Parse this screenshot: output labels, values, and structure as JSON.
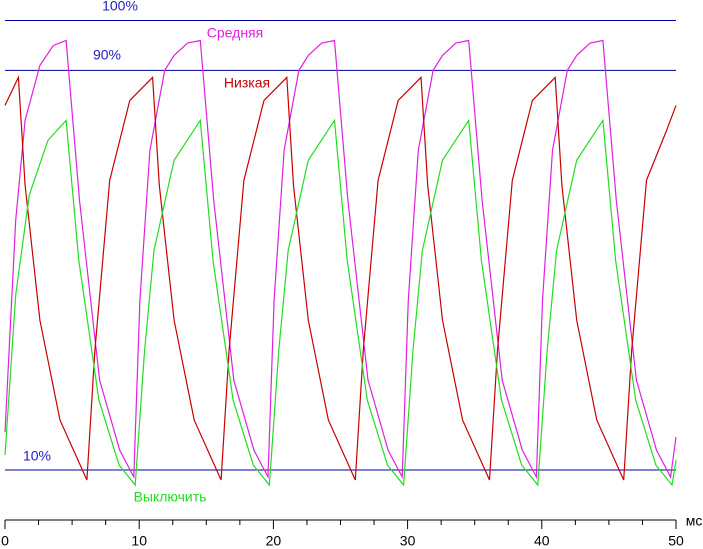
{
  "chart_data": {
    "type": "line",
    "xlabel": "мс",
    "xlim": [
      0,
      50
    ],
    "xticks": [
      0,
      10,
      20,
      30,
      40,
      50
    ],
    "xminor_ticks": [
      2.5,
      5,
      7.5,
      12.5,
      15,
      17.5,
      22.5,
      25,
      27.5,
      32.5,
      35,
      37.5,
      42.5,
      45,
      47.5
    ],
    "ylim": [
      0,
      104
    ],
    "hlines": [
      {
        "value": 100,
        "label": "100%"
      },
      {
        "value": 90,
        "label": "90%"
      },
      {
        "value": 10,
        "label": "10%"
      }
    ],
    "hline_color": "#0000a0",
    "series": [
      {
        "name": "Средняя",
        "color": "#e020e0",
        "x": [
          0,
          0.8,
          1.5,
          2.6,
          3.6,
          4.55,
          5.55,
          7.05,
          8.55,
          9.6,
          10.05,
          10.8,
          11.9,
          12.6,
          13.6,
          14.55,
          15.55,
          17.05,
          18.55,
          19.6,
          20.05,
          20.8,
          21.9,
          22.6,
          23.6,
          24.55,
          25.55,
          27.05,
          28.55,
          29.6,
          30.05,
          30.8,
          31.9,
          32.6,
          33.6,
          34.55,
          35.55,
          37.05,
          38.55,
          39.6,
          40.05,
          40.8,
          41.9,
          42.6,
          43.6,
          44.55,
          45.55,
          47.05,
          48.55,
          49.6,
          50
        ],
        "values": [
          17.6,
          60,
          80,
          91,
          95,
          96,
          64,
          28,
          14,
          8.6,
          44,
          74,
          90,
          93,
          95.5,
          96,
          64,
          28,
          14,
          8.6,
          44,
          74,
          90,
          93,
          95.5,
          96,
          64,
          28,
          14,
          8.6,
          44,
          74,
          90,
          93,
          95.5,
          96,
          64,
          28,
          14,
          8.6,
          44,
          74,
          90,
          93,
          95.5,
          96,
          64,
          28,
          14,
          8.6,
          16.6
        ]
      },
      {
        "name": "Низкая",
        "color": "#c80000",
        "x": [
          0,
          1,
          1.5,
          2.6,
          4.1,
          6.1,
          6.7,
          7.8,
          9.3,
          11,
          11.5,
          12.6,
          14.1,
          16.1,
          16.7,
          17.8,
          19.3,
          21,
          21.5,
          22.6,
          24.1,
          26.1,
          26.7,
          27.8,
          29.3,
          31,
          31.5,
          32.6,
          34.1,
          36.1,
          36.7,
          37.8,
          39.3,
          41,
          41.5,
          42.6,
          44.1,
          46.1,
          46.7,
          47.8,
          49.3,
          50
        ],
        "values": [
          83,
          88.6,
          67,
          40,
          20,
          8,
          34,
          68,
          84,
          88.6,
          67,
          40,
          20,
          8,
          34,
          68,
          84,
          88.6,
          67,
          40,
          20,
          8,
          34,
          68,
          84,
          88.6,
          67,
          40,
          20,
          8,
          34,
          68,
          84,
          88.6,
          67,
          40,
          20,
          8,
          34,
          68,
          78,
          83
        ]
      },
      {
        "name": "Выключить",
        "color": "#22dd22",
        "x": [
          0,
          0.8,
          1.8,
          3.2,
          4.55,
          5.5,
          7,
          8.5,
          9.7,
          10.4,
          11.1,
          12.6,
          14.55,
          15.5,
          17,
          18.5,
          19.7,
          20.4,
          21.1,
          22.6,
          24.55,
          25.5,
          27,
          28.5,
          29.7,
          30.4,
          31.1,
          32.6,
          34.55,
          35.5,
          37,
          38.5,
          39.7,
          40.4,
          41.1,
          42.6,
          44.55,
          45.5,
          47,
          48.5,
          49.7,
          50
        ],
        "values": [
          13,
          45,
          65,
          76,
          80,
          52,
          24,
          11,
          7,
          34,
          54,
          72,
          80,
          52,
          24,
          11,
          7,
          34,
          54,
          72,
          80,
          52,
          24,
          11,
          7,
          34,
          54,
          72,
          80,
          52,
          24,
          11,
          7,
          34,
          54,
          72,
          80,
          52,
          24,
          11,
          7,
          12
        ]
      }
    ]
  }
}
